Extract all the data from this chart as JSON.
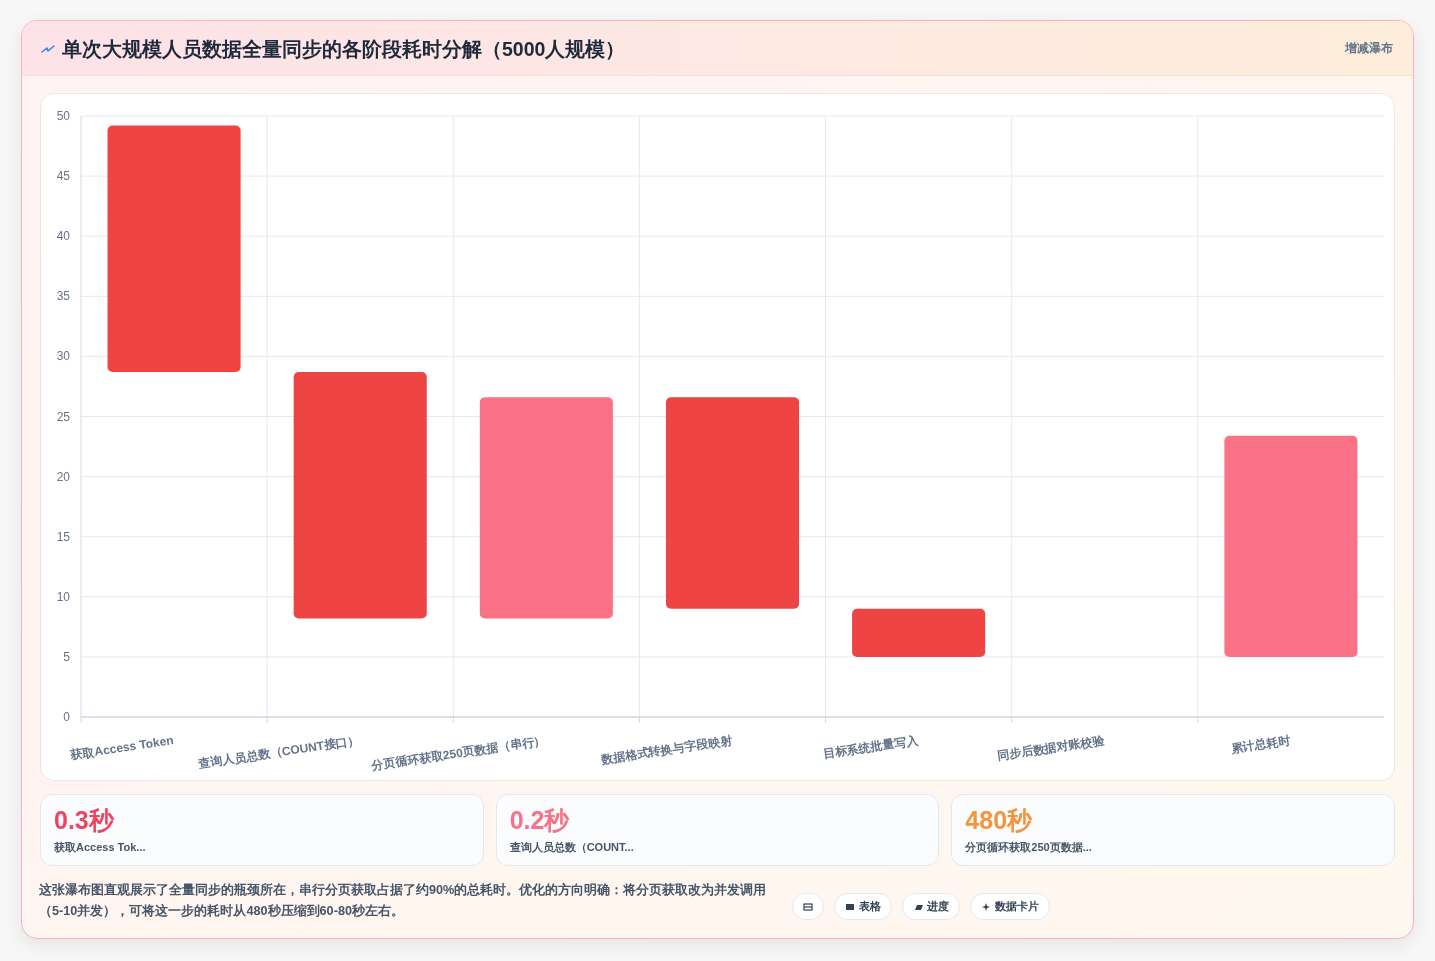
{
  "chart_data": [
    {
      "type": "bar",
      "title": "单次大规模人员数据全量同步的各阶段耗时分解（5000人规模）",
      "subtitle": "增减瀑布",
      "categories": [
        "获取Access Token",
        "查询人员总数（COUNT接口）",
        "分页循环获取250页数据（串行）",
        "数据格式转换与字段映射",
        "目标系统批量写入",
        "同步后数据对账校验",
        "累计总耗时"
      ],
      "values": [
        20.5,
        20.5,
        18.4,
        17.6,
        4.0,
        null,
        18.4
      ],
      "base": [
        28.7,
        8.2,
        8.2,
        9.0,
        5.0,
        null,
        5.0
      ],
      "colors": [
        "#ef4444",
        "#ef4444",
        "#fb7185",
        "#ef4444",
        "#ef4444",
        null,
        "#fb7185"
      ],
      "ylim": [
        0,
        50
      ],
      "yticks": [
        0,
        5,
        10,
        15,
        20,
        25,
        30,
        35,
        40,
        45,
        50
      ],
      "grid": true,
      "annotations": [
        "这张瀑布图直观展示了全量同步的瓶颈所在，串行分页获取占据了约90%的总耗时。优化的方向明确：将分页获取改为并发调用（5-10并发），可将这一步的耗时从480秒压缩到60-80秒左右。"
      ]
    },
    {
      "type": "other",
      "annotations": [
        "0.3秒",
        "获取Access Tok...",
        "0.2秒",
        "查询人员总数（COUNT...",
        "480秒",
        "分页循环获取250页数据..."
      ]
    },
    {
      "type": "other",
      "categories": [
        null,
        "表格",
        "进度",
        "数据卡片"
      ]
    }
  ]
}
